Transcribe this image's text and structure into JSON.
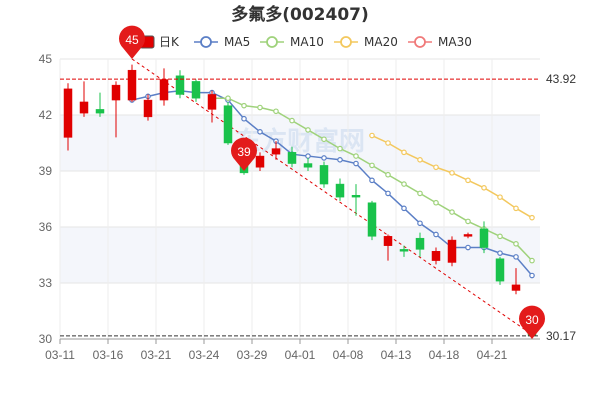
{
  "chart_data": {
    "type": "candlestick",
    "title": "多氟多(002407)",
    "legend": [
      {
        "name": "日K",
        "color": "#e00000",
        "marker": "box"
      },
      {
        "name": "MA5",
        "color": "#5b7fc6",
        "marker": "circle"
      },
      {
        "name": "MA10",
        "color": "#9fd27b",
        "marker": "circle"
      },
      {
        "name": "MA20",
        "color": "#f3c85e",
        "marker": "circle"
      },
      {
        "name": "MA30",
        "color": "#f07a7a",
        "marker": "circle"
      }
    ],
    "legend_position": "top",
    "ylim": [
      30,
      45
    ],
    "yticks": [
      30,
      33,
      36,
      39,
      42,
      45
    ],
    "grid": true,
    "x_tick_labels": [
      {
        "index": 0,
        "label": "03-11"
      },
      {
        "index": 3,
        "label": "03-16"
      },
      {
        "index": 6,
        "label": "03-21"
      },
      {
        "index": 9,
        "label": "03-24"
      },
      {
        "index": 12,
        "label": "03-29"
      },
      {
        "index": 15,
        "label": "04-01"
      },
      {
        "index": 18,
        "label": "04-08"
      },
      {
        "index": 21,
        "label": "04-13"
      },
      {
        "index": 24,
        "label": "04-18"
      },
      {
        "index": 27,
        "label": "04-21"
      }
    ],
    "candles": [
      {
        "o": 40.8,
        "c": 43.4,
        "h": 43.7,
        "l": 40.1
      },
      {
        "o": 42.1,
        "c": 42.7,
        "h": 43.8,
        "l": 41.9
      },
      {
        "o": 42.3,
        "c": 42.1,
        "h": 43.2,
        "l": 41.9
      },
      {
        "o": 42.8,
        "c": 43.6,
        "h": 43.8,
        "l": 40.8
      },
      {
        "o": 42.8,
        "c": 44.4,
        "h": 44.7,
        "l": 42.7
      },
      {
        "o": 41.9,
        "c": 42.8,
        "h": 43.1,
        "l": 41.7
      },
      {
        "o": 42.8,
        "c": 43.9,
        "h": 44.5,
        "l": 42.5
      },
      {
        "o": 44.1,
        "c": 43.1,
        "h": 44.4,
        "l": 42.9
      },
      {
        "o": 43.8,
        "c": 42.9,
        "h": 43.9,
        "l": 42.7
      },
      {
        "o": 42.3,
        "c": 43.1,
        "h": 43.3,
        "l": 41.6
      },
      {
        "o": 42.5,
        "c": 40.5,
        "h": 42.7,
        "l": 40.4
      },
      {
        "o": 40.1,
        "c": 38.9,
        "h": 40.3,
        "l": 38.8
      },
      {
        "o": 39.2,
        "c": 39.8,
        "h": 40.0,
        "l": 39.0
      },
      {
        "o": 39.9,
        "c": 40.2,
        "h": 40.6,
        "l": 39.6
      },
      {
        "o": 40.0,
        "c": 39.4,
        "h": 40.3,
        "l": 39.2
      },
      {
        "o": 39.4,
        "c": 39.2,
        "h": 39.7,
        "l": 39.0
      },
      {
        "o": 39.3,
        "c": 38.3,
        "h": 39.5,
        "l": 38.1
      },
      {
        "o": 38.3,
        "c": 37.6,
        "h": 38.6,
        "l": 37.4
      },
      {
        "o": 37.7,
        "c": 37.6,
        "h": 38.3,
        "l": 36.6
      },
      {
        "o": 37.3,
        "c": 35.5,
        "h": 37.4,
        "l": 35.3
      },
      {
        "o": 35.0,
        "c": 35.5,
        "h": 35.6,
        "l": 34.2
      },
      {
        "o": 34.8,
        "c": 34.7,
        "h": 35.0,
        "l": 34.4
      },
      {
        "o": 35.4,
        "c": 34.8,
        "h": 35.7,
        "l": 34.4
      },
      {
        "o": 34.2,
        "c": 34.7,
        "h": 34.9,
        "l": 34.0
      },
      {
        "o": 34.1,
        "c": 35.3,
        "h": 35.5,
        "l": 33.9
      },
      {
        "o": 35.5,
        "c": 35.6,
        "h": 35.7,
        "l": 35.4
      },
      {
        "o": 35.9,
        "c": 34.9,
        "h": 36.3,
        "l": 34.6
      },
      {
        "o": 34.3,
        "c": 33.1,
        "h": 34.4,
        "l": 32.9
      },
      {
        "o": 32.6,
        "c": 32.9,
        "h": 33.8,
        "l": 32.4
      },
      {
        "o": 31.6,
        "c": 30.2,
        "h": 31.7,
        "l": 30.17
      }
    ],
    "ma5": [
      null,
      null,
      null,
      null,
      42.8,
      43.0,
      43.2,
      43.3,
      43.2,
      43.2,
      42.8,
      41.8,
      41.1,
      40.6,
      39.9,
      39.8,
      39.7,
      39.6,
      39.4,
      38.5,
      37.8,
      37.0,
      36.2,
      35.6,
      34.9,
      34.9,
      34.9,
      34.6,
      34.4,
      33.4
    ],
    "ma10": [
      null,
      null,
      null,
      null,
      null,
      null,
      null,
      null,
      null,
      42.9,
      42.9,
      42.5,
      42.4,
      42.2,
      41.7,
      41.2,
      40.7,
      40.2,
      39.8,
      39.3,
      38.8,
      38.3,
      37.8,
      37.3,
      36.8,
      36.3,
      35.9,
      35.5,
      35.1,
      34.2
    ],
    "ma20": [
      null,
      null,
      null,
      null,
      null,
      null,
      null,
      null,
      null,
      null,
      null,
      null,
      null,
      null,
      null,
      null,
      null,
      null,
      null,
      40.9,
      40.5,
      40.0,
      39.6,
      39.2,
      38.9,
      38.5,
      38.1,
      37.6,
      37.0,
      36.5
    ],
    "ma30": [],
    "reference_lines": [
      {
        "value": 43.92,
        "label": "43.92",
        "color": "#e00000"
      },
      {
        "value": 30.17,
        "label": "30.17",
        "color": "#333333"
      }
    ],
    "markers": [
      {
        "index": 4,
        "value": 45,
        "label": "45"
      },
      {
        "index": 11,
        "value": 39,
        "label": "39"
      },
      {
        "index": 29,
        "value": 30,
        "label": "30"
      }
    ],
    "watermark": "东方财富网"
  }
}
